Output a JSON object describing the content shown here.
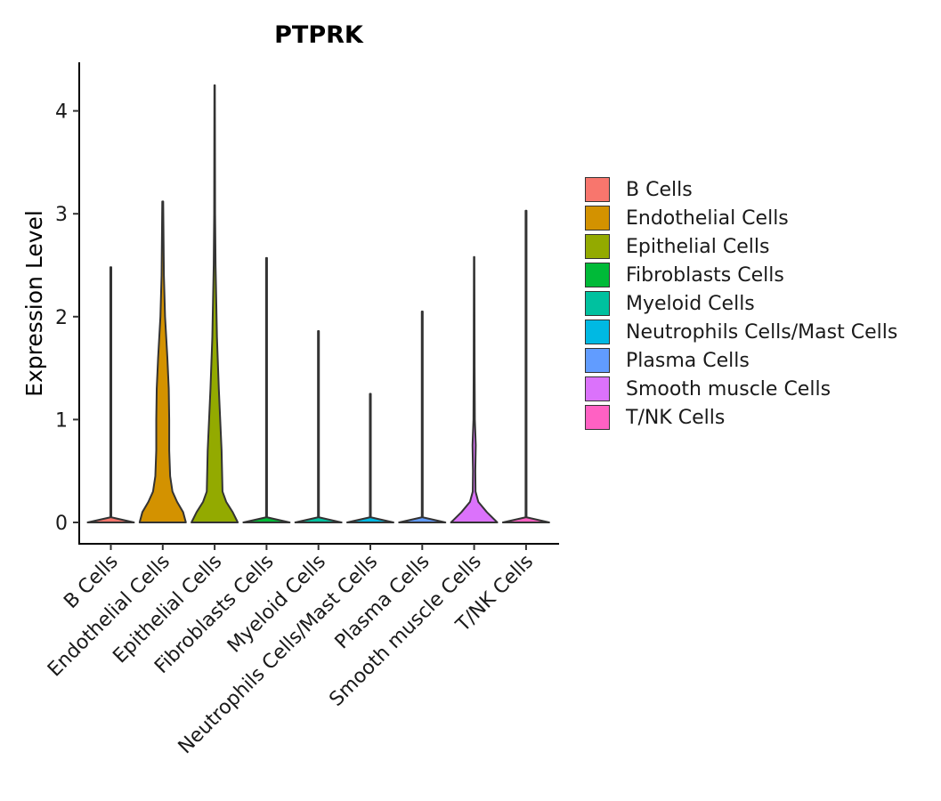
{
  "chart_data": {
    "type": "violin",
    "title": "PTPRK",
    "xlabel": "",
    "ylabel": "Expression Level",
    "ylim": [
      -0.2,
      4.5
    ],
    "yticks": [
      0,
      1,
      2,
      3,
      4
    ],
    "categories": [
      "B Cells",
      "Endothelial Cells",
      "Epithelial Cells",
      "Fibroblasts Cells",
      "Myeloid Cells",
      "Neutrophils Cells/Mast Cells",
      "Plasma Cells",
      "Smooth muscle Cells",
      "T/NK Cells"
    ],
    "colors": [
      "#F8766D",
      "#D39200",
      "#93AA00",
      "#00BA38",
      "#00C19F",
      "#00B9E3",
      "#619CFF",
      "#DB72FB",
      "#FF61C3"
    ],
    "series": [
      {
        "name": "B Cells",
        "max": 2.48,
        "profile": [
          [
            0,
            1.0
          ],
          [
            0.05,
            0.02
          ],
          [
            2.48,
            0.02
          ]
        ]
      },
      {
        "name": "Endothelial Cells",
        "max": 3.12,
        "profile": [
          [
            0,
            1.0
          ],
          [
            0.1,
            0.88
          ],
          [
            0.2,
            0.62
          ],
          [
            0.3,
            0.42
          ],
          [
            0.45,
            0.32
          ],
          [
            0.7,
            0.28
          ],
          [
            1.0,
            0.28
          ],
          [
            1.3,
            0.26
          ],
          [
            1.6,
            0.2
          ],
          [
            2.0,
            0.1
          ],
          [
            2.4,
            0.05
          ],
          [
            3.12,
            0.02
          ]
        ]
      },
      {
        "name": "Epithelial Cells",
        "max": 4.25,
        "profile": [
          [
            0,
            1.0
          ],
          [
            0.1,
            0.78
          ],
          [
            0.2,
            0.5
          ],
          [
            0.3,
            0.34
          ],
          [
            0.5,
            0.32
          ],
          [
            0.7,
            0.3
          ],
          [
            1.0,
            0.24
          ],
          [
            1.3,
            0.18
          ],
          [
            1.8,
            0.1
          ],
          [
            2.5,
            0.04
          ],
          [
            3.0,
            0.02
          ],
          [
            4.25,
            0.01
          ]
        ]
      },
      {
        "name": "Fibroblasts Cells",
        "max": 2.57,
        "profile": [
          [
            0,
            1.0
          ],
          [
            0.05,
            0.02
          ],
          [
            2.57,
            0.02
          ]
        ]
      },
      {
        "name": "Myeloid Cells",
        "max": 1.86,
        "profile": [
          [
            0,
            1.0
          ],
          [
            0.05,
            0.02
          ],
          [
            1.86,
            0.02
          ]
        ]
      },
      {
        "name": "Neutrophils Cells/Mast Cells",
        "max": 1.25,
        "profile": [
          [
            0,
            1.0
          ],
          [
            0.05,
            0.02
          ],
          [
            1.25,
            0.02
          ]
        ]
      },
      {
        "name": "Plasma Cells",
        "max": 2.05,
        "profile": [
          [
            0,
            1.0
          ],
          [
            0.05,
            0.02
          ],
          [
            2.05,
            0.02
          ]
        ]
      },
      {
        "name": "Smooth muscle Cells",
        "max": 2.58,
        "profile": [
          [
            0,
            1.0
          ],
          [
            0.1,
            0.55
          ],
          [
            0.2,
            0.18
          ],
          [
            0.3,
            0.06
          ],
          [
            0.5,
            0.05
          ],
          [
            0.75,
            0.07
          ],
          [
            1.0,
            0.03
          ],
          [
            1.5,
            0.02
          ],
          [
            2.58,
            0.01
          ]
        ]
      },
      {
        "name": "T/NK Cells",
        "max": 3.03,
        "profile": [
          [
            0,
            1.0
          ],
          [
            0.05,
            0.02
          ],
          [
            3.03,
            0.02
          ]
        ]
      }
    ],
    "legend": {
      "title": "",
      "position": "right"
    }
  }
}
